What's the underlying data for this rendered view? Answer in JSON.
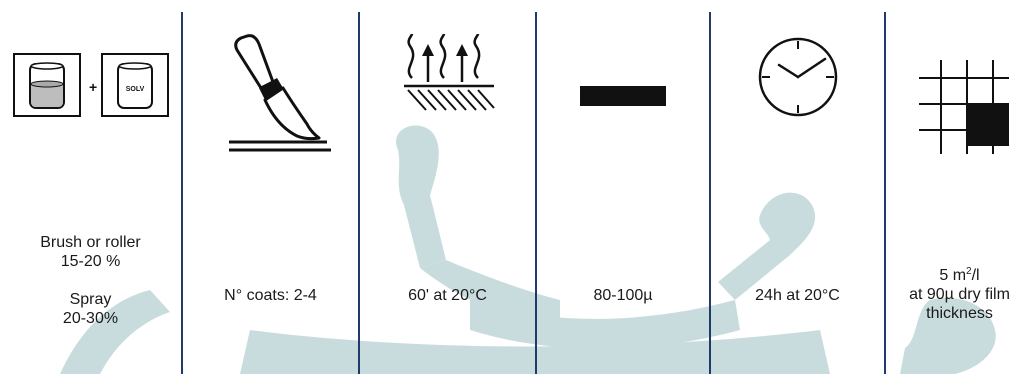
{
  "columns": [
    {
      "icon": "mixing-with-solvent-icon",
      "icon_text": "SOLV",
      "plus": "+",
      "lines": [
        "Brush or roller",
        "15-20 %",
        "Spray",
        "20-30%"
      ]
    },
    {
      "icon": "brush-icon",
      "text": "N° coats: 2-4"
    },
    {
      "icon": "drying-heat-icon",
      "text": "60' at 20°C"
    },
    {
      "icon": "film-thickness-bar-icon",
      "text": "80-100µ"
    },
    {
      "icon": "clock-icon",
      "text": "24h at 20°C"
    },
    {
      "icon": "coverage-grid-icon",
      "yield_value": "5 m",
      "yield_sup": "2",
      "yield_unit": "/l",
      "line2": "at 90µ dry film",
      "line3": "thickness"
    }
  ],
  "colors": {
    "divider": "#1f3a6b",
    "watermark": "#c9dcdd",
    "icon": "#111111",
    "liquid": "#bdbdbd"
  }
}
